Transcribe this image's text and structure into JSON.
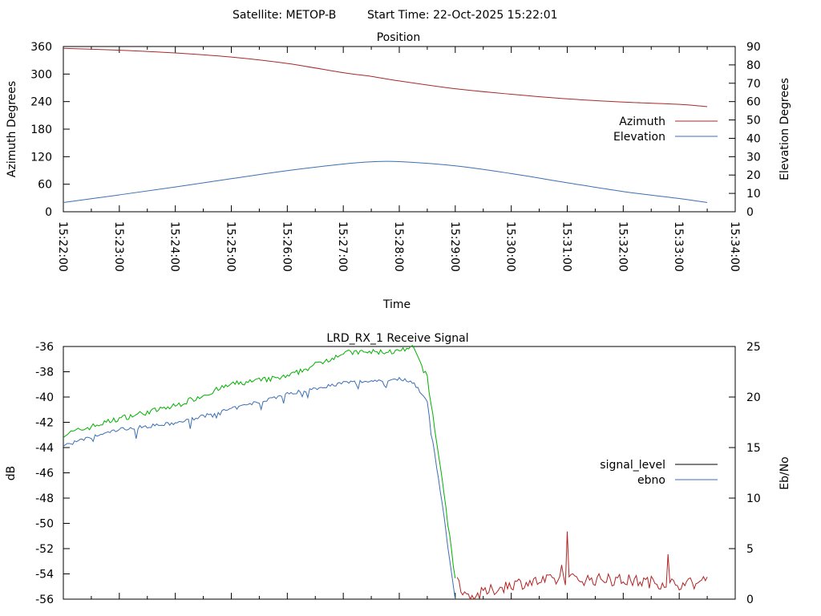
{
  "header": {
    "satellite_label": "Satellite: METOP-B",
    "start_time_label": "Start Time: 22-Oct-2025 15:22:01"
  },
  "colors": {
    "azimuth": "#a52a2a",
    "elevation": "#3b6fb4",
    "signal_level": "#000000",
    "ebno": "#3b6fb4",
    "signal_strong": "#00b000",
    "signal_noise": "#b22222"
  },
  "chart_data": [
    {
      "type": "line",
      "title": "Position",
      "xlabel": "Time",
      "ylabel": "Azimuth Degrees",
      "y2label": "Elevation Degrees",
      "xlim": [
        "15:22:00",
        "15:34:00"
      ],
      "x_ticks": [
        "15:22:00",
        "15:23:00",
        "15:24:00",
        "15:25:00",
        "15:26:00",
        "15:27:00",
        "15:28:00",
        "15:29:00",
        "15:30:00",
        "15:31:00",
        "15:32:00",
        "15:33:00",
        "15:34:00"
      ],
      "ylim": [
        0,
        360
      ],
      "y_ticks": [
        0,
        60,
        120,
        180,
        240,
        300,
        360
      ],
      "y2lim": [
        0,
        90
      ],
      "y2_ticks": [
        0,
        10,
        20,
        30,
        40,
        50,
        60,
        70,
        80,
        90
      ],
      "legend_position": "right",
      "grid": false,
      "series": [
        {
          "name": "Azimuth",
          "axis": "y",
          "x": [
            "15:22:00",
            "15:23:00",
            "15:24:00",
            "15:25:00",
            "15:26:00",
            "15:27:00",
            "15:27:30",
            "15:28:00",
            "15:29:00",
            "15:30:00",
            "15:31:00",
            "15:32:00",
            "15:33:00",
            "15:33:30"
          ],
          "values": [
            356,
            352,
            346,
            337,
            323,
            303,
            295,
            285,
            268,
            256,
            246,
            239,
            234,
            229
          ]
        },
        {
          "name": "Elevation",
          "axis": "y2",
          "x": [
            "15:22:00",
            "15:23:00",
            "15:24:00",
            "15:25:00",
            "15:26:00",
            "15:27:00",
            "15:27:30",
            "15:28:00",
            "15:29:00",
            "15:30:00",
            "15:31:00",
            "15:32:00",
            "15:33:00",
            "15:33:30"
          ],
          "values": [
            5,
            9.2,
            13.5,
            18,
            22.4,
            26,
            27.2,
            27.3,
            25,
            20.8,
            15.8,
            11,
            7.2,
            5
          ]
        }
      ]
    },
    {
      "type": "line",
      "title": "LRD_RX_1 Receive Signal",
      "ylabel": "dB",
      "y2label": "Eb/No",
      "xlim": [
        "15:22:00",
        "15:34:00"
      ],
      "ylim": [
        -56,
        -36
      ],
      "y_ticks": [
        -56,
        -54,
        -52,
        -50,
        -48,
        -46,
        -44,
        -42,
        -40,
        -38,
        -36
      ],
      "y2lim": [
        0,
        25
      ],
      "y2_ticks": [
        0,
        5,
        10,
        15,
        20,
        25
      ],
      "legend_position": "right",
      "grid": false,
      "series": [
        {
          "name": "signal_level",
          "axis": "y",
          "color_note": "drawn green while locked, dark red when in noise",
          "x": [
            "15:22:00",
            "15:23:00",
            "15:24:00",
            "15:25:00",
            "15:26:00",
            "15:27:00",
            "15:28:00",
            "15:28:15",
            "15:28:30",
            "15:28:45",
            "15:29:00",
            "15:29:15",
            "15:30:00",
            "15:31:00",
            "15:32:00",
            "15:33:00",
            "15:33:30"
          ],
          "values": [
            -43,
            -41.7,
            -40.7,
            -39,
            -38.4,
            -36.5,
            -36.4,
            -36.1,
            -38.5,
            -46,
            -54.4,
            -55.9,
            -54.8,
            -54.4,
            -54.5,
            -54.8,
            -54.7
          ]
        },
        {
          "name": "ebno",
          "axis": "y2",
          "x": [
            "15:22:00",
            "15:23:00",
            "15:24:00",
            "15:25:00",
            "15:26:00",
            "15:27:00",
            "15:28:00",
            "15:28:15",
            "15:28:30",
            "15:28:45",
            "15:29:00"
          ],
          "values": [
            15.2,
            16.8,
            17.4,
            18.8,
            20.3,
            21.4,
            21.8,
            21.5,
            19.5,
            10,
            0
          ]
        }
      ]
    }
  ]
}
